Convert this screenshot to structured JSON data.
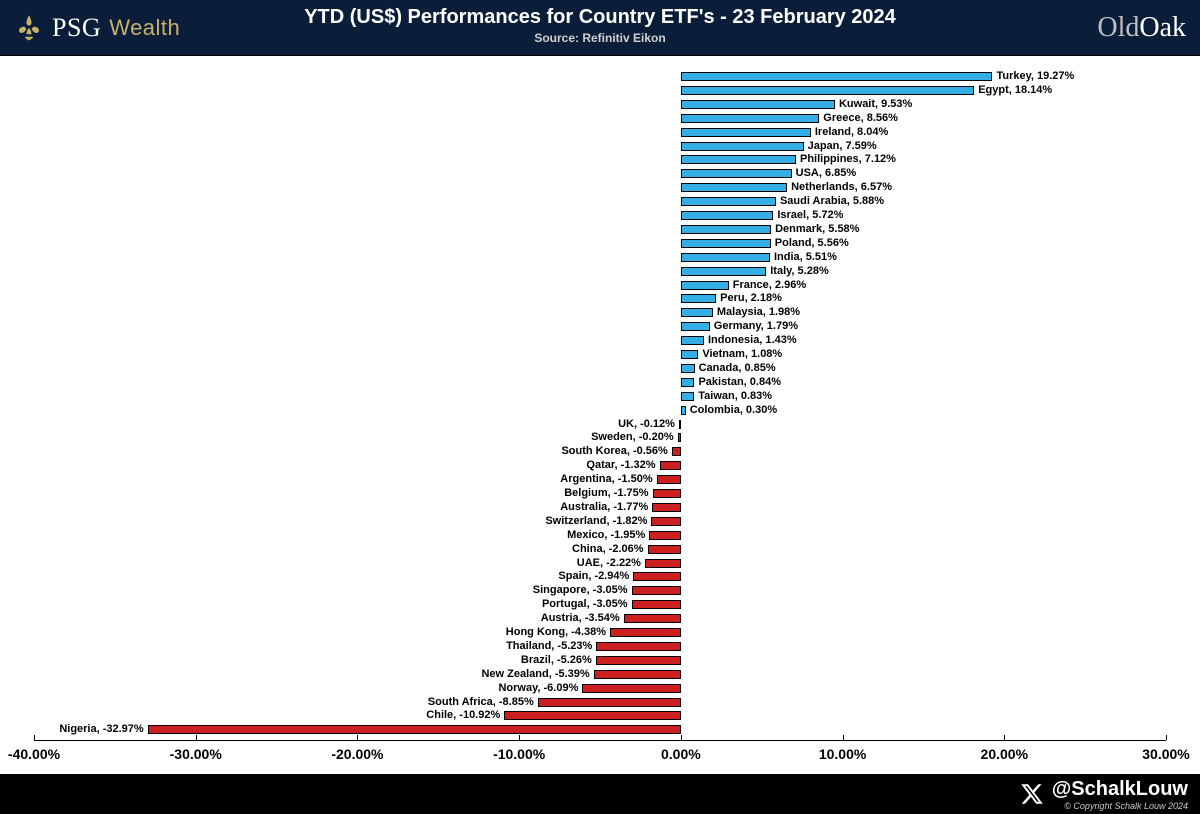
{
  "header": {
    "brand_left_main": "PSG",
    "brand_left_sub": "Wealth",
    "title": "YTD (US$) Performances for Country ETF's - 23 February 2024",
    "subtitle": "Source: Refinitiv Eikon",
    "brand_right_a": "Old",
    "brand_right_b": "Oak"
  },
  "footer": {
    "handle": "@SchalkLouw",
    "copyright": "© Copyright Schalk Louw 2024"
  },
  "chart": {
    "type": "bar-horizontal-diverging",
    "background_color": "#ffffff",
    "positive_color": "#35aee6",
    "negative_color": "#cc1f1f",
    "bar_border_color": "#000000",
    "label_fontsize": 11,
    "label_fontweight": "bold",
    "axis_fontsize": 14,
    "axis_fontweight": "bold",
    "xlim": [
      -40,
      30
    ],
    "xticks": [
      -40,
      -30,
      -20,
      -10,
      0,
      10,
      20,
      30
    ],
    "xtick_labels": [
      "-40.00%",
      "-30.00%",
      "-20.00%",
      "-10.00%",
      "0.00%",
      "10.00%",
      "20.00%",
      "30.00%"
    ],
    "series": [
      {
        "country": "Turkey",
        "value": 19.27
      },
      {
        "country": "Egypt",
        "value": 18.14
      },
      {
        "country": "Kuwait",
        "value": 9.53
      },
      {
        "country": "Greece",
        "value": 8.56
      },
      {
        "country": "Ireland",
        "value": 8.04
      },
      {
        "country": "Japan",
        "value": 7.59
      },
      {
        "country": "Philippines",
        "value": 7.12
      },
      {
        "country": "USA",
        "value": 6.85
      },
      {
        "country": "Netherlands",
        "value": 6.57
      },
      {
        "country": "Saudi Arabia",
        "value": 5.88
      },
      {
        "country": "Israel",
        "value": 5.72
      },
      {
        "country": "Denmark",
        "value": 5.58
      },
      {
        "country": "Poland",
        "value": 5.56
      },
      {
        "country": "India",
        "value": 5.51
      },
      {
        "country": "Italy",
        "value": 5.28
      },
      {
        "country": "France",
        "value": 2.96
      },
      {
        "country": "Peru",
        "value": 2.18
      },
      {
        "country": "Malaysia",
        "value": 1.98
      },
      {
        "country": "Germany",
        "value": 1.79
      },
      {
        "country": "Indonesia",
        "value": 1.43
      },
      {
        "country": "Vietnam",
        "value": 1.08
      },
      {
        "country": "Canada",
        "value": 0.85
      },
      {
        "country": "Pakistan",
        "value": 0.84
      },
      {
        "country": "Taiwan",
        "value": 0.83
      },
      {
        "country": "Colombia",
        "value": 0.3
      },
      {
        "country": "UK",
        "value": -0.12
      },
      {
        "country": "Sweden",
        "value": -0.2
      },
      {
        "country": "South Korea",
        "value": -0.56
      },
      {
        "country": "Qatar",
        "value": -1.32
      },
      {
        "country": "Argentina",
        "value": -1.5
      },
      {
        "country": "Belgium",
        "value": -1.75
      },
      {
        "country": "Australia",
        "value": -1.77
      },
      {
        "country": "Switzerland",
        "value": -1.82
      },
      {
        "country": "Mexico",
        "value": -1.95
      },
      {
        "country": "China",
        "value": -2.06
      },
      {
        "country": "UAE",
        "value": -2.22
      },
      {
        "country": "Spain",
        "value": -2.94
      },
      {
        "country": "Singapore",
        "value": -3.05
      },
      {
        "country": "Portugal",
        "value": -3.05
      },
      {
        "country": "Austria",
        "value": -3.54
      },
      {
        "country": "Hong Kong",
        "value": -4.38
      },
      {
        "country": "Thailand",
        "value": -5.23
      },
      {
        "country": "Brazil",
        "value": -5.26
      },
      {
        "country": "New Zealand",
        "value": -5.39
      },
      {
        "country": "Norway",
        "value": -6.09
      },
      {
        "country": "South Africa",
        "value": -8.85
      },
      {
        "country": "Chile",
        "value": -10.92
      },
      {
        "country": "Nigeria",
        "value": -32.97
      }
    ]
  }
}
